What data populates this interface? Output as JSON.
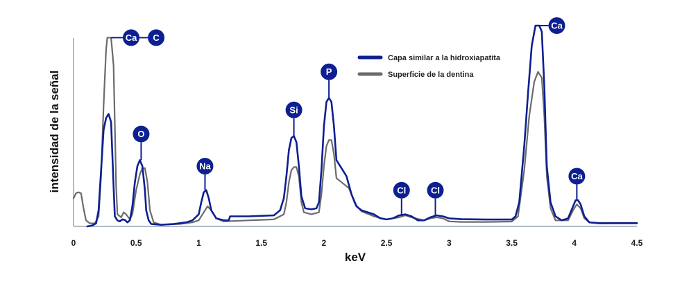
{
  "chart_data": {
    "type": "line",
    "title": "",
    "xlabel": "keV",
    "ylabel": "intensidad de la señal",
    "xlim": [
      0,
      4.5
    ],
    "ylim": [
      0,
      100
    ],
    "grid": false,
    "legend_position": "top-right",
    "xticks": [
      {
        "value": 0,
        "label": "0"
      },
      {
        "value": 0.5,
        "label": "0.5"
      },
      {
        "value": 1,
        "label": "1"
      },
      {
        "value": 1.5,
        "label": "1.5"
      },
      {
        "value": 2,
        "label": "2"
      },
      {
        "value": 2.5,
        "label": "2.5"
      },
      {
        "value": 3,
        "label": "3"
      },
      {
        "value": 3.5,
        "label": "3.5"
      },
      {
        "value": 4,
        "label": "4"
      },
      {
        "value": 4.5,
        "label": "4.5"
      }
    ],
    "series": [
      {
        "name": "Capa similar a la hidroxiapatita",
        "color": "#0d1f91",
        "points": [
          [
            0.11,
            0
          ],
          [
            0.15,
            0.5
          ],
          [
            0.18,
            1.5
          ],
          [
            0.2,
            8
          ],
          [
            0.22,
            28
          ],
          [
            0.24,
            48
          ],
          [
            0.26,
            54
          ],
          [
            0.28,
            56
          ],
          [
            0.3,
            52
          ],
          [
            0.32,
            20
          ],
          [
            0.33,
            5
          ],
          [
            0.35,
            3
          ],
          [
            0.37,
            2.5
          ],
          [
            0.39,
            3.5
          ],
          [
            0.41,
            3.2
          ],
          [
            0.43,
            2
          ],
          [
            0.45,
            3
          ],
          [
            0.47,
            10
          ],
          [
            0.49,
            22
          ],
          [
            0.51,
            30
          ],
          [
            0.53,
            33
          ],
          [
            0.55,
            30
          ],
          [
            0.57,
            18
          ],
          [
            0.58,
            8
          ],
          [
            0.6,
            3
          ],
          [
            0.62,
            1.2
          ],
          [
            0.7,
            0.8
          ],
          [
            0.8,
            1.2
          ],
          [
            0.9,
            2
          ],
          [
            0.95,
            3
          ],
          [
            1.0,
            6
          ],
          [
            1.02,
            12
          ],
          [
            1.04,
            17
          ],
          [
            1.06,
            18
          ],
          [
            1.08,
            14
          ],
          [
            1.1,
            8
          ],
          [
            1.14,
            4
          ],
          [
            1.2,
            3
          ],
          [
            1.24,
            3
          ],
          [
            1.25,
            5
          ],
          [
            1.4,
            5
          ],
          [
            1.6,
            5.5
          ],
          [
            1.65,
            8
          ],
          [
            1.68,
            14
          ],
          [
            1.7,
            25
          ],
          [
            1.72,
            38
          ],
          [
            1.74,
            44
          ],
          [
            1.76,
            45
          ],
          [
            1.78,
            42
          ],
          [
            1.8,
            30
          ],
          [
            1.82,
            15
          ],
          [
            1.85,
            9
          ],
          [
            1.9,
            8.5
          ],
          [
            1.94,
            9
          ],
          [
            1.96,
            12
          ],
          [
            1.98,
            28
          ],
          [
            2.0,
            50
          ],
          [
            2.02,
            62
          ],
          [
            2.04,
            64
          ],
          [
            2.06,
            62
          ],
          [
            2.08,
            50
          ],
          [
            2.1,
            33
          ],
          [
            2.14,
            29
          ],
          [
            2.18,
            25
          ],
          [
            2.22,
            16
          ],
          [
            2.26,
            10
          ],
          [
            2.3,
            8
          ],
          [
            2.4,
            6
          ],
          [
            2.45,
            4
          ],
          [
            2.5,
            3.5
          ],
          [
            2.55,
            4
          ],
          [
            2.6,
            5.5
          ],
          [
            2.65,
            6
          ],
          [
            2.7,
            5
          ],
          [
            2.75,
            3
          ],
          [
            2.8,
            3
          ],
          [
            2.85,
            4.5
          ],
          [
            2.9,
            5.5
          ],
          [
            2.95,
            5
          ],
          [
            3.0,
            4
          ],
          [
            3.1,
            3.6
          ],
          [
            3.3,
            3.4
          ],
          [
            3.5,
            3.4
          ],
          [
            3.53,
            5
          ],
          [
            3.56,
            12
          ],
          [
            3.6,
            40
          ],
          [
            3.63,
            66
          ],
          [
            3.66,
            90
          ],
          [
            3.69,
            100
          ],
          [
            3.72,
            100
          ],
          [
            3.74,
            97
          ],
          [
            3.76,
            70
          ],
          [
            3.78,
            30
          ],
          [
            3.81,
            12
          ],
          [
            3.85,
            5
          ],
          [
            3.9,
            3
          ],
          [
            3.95,
            4
          ],
          [
            3.99,
            10
          ],
          [
            4.01,
            13
          ],
          [
            4.03,
            13
          ],
          [
            4.05,
            11
          ],
          [
            4.08,
            5
          ],
          [
            4.12,
            2
          ],
          [
            4.2,
            1.5
          ],
          [
            4.4,
            1.6
          ],
          [
            4.5,
            1.6
          ]
        ]
      },
      {
        "name": "Superficie de la dentina",
        "color": "#6b6b6b",
        "points": [
          [
            0.0,
            14
          ],
          [
            0.02,
            16.5
          ],
          [
            0.04,
            17
          ],
          [
            0.06,
            16.5
          ],
          [
            0.08,
            9
          ],
          [
            0.1,
            3
          ],
          [
            0.13,
            1.5
          ],
          [
            0.17,
            1.5
          ],
          [
            0.2,
            5
          ],
          [
            0.22,
            25
          ],
          [
            0.24,
            60
          ],
          [
            0.26,
            88
          ],
          [
            0.27,
            94
          ],
          [
            0.3,
            94
          ],
          [
            0.32,
            80
          ],
          [
            0.34,
            20
          ],
          [
            0.35,
            6
          ],
          [
            0.38,
            4.5
          ],
          [
            0.4,
            7
          ],
          [
            0.42,
            6
          ],
          [
            0.45,
            3.5
          ],
          [
            0.47,
            6
          ],
          [
            0.5,
            18
          ],
          [
            0.53,
            26
          ],
          [
            0.55,
            29
          ],
          [
            0.57,
            29
          ],
          [
            0.59,
            22
          ],
          [
            0.61,
            8
          ],
          [
            0.64,
            2
          ],
          [
            0.7,
            0.8
          ],
          [
            0.85,
            1.2
          ],
          [
            0.95,
            2
          ],
          [
            1.0,
            3
          ],
          [
            1.04,
            7
          ],
          [
            1.07,
            10
          ],
          [
            1.1,
            8
          ],
          [
            1.14,
            4
          ],
          [
            1.2,
            2.5
          ],
          [
            1.4,
            3
          ],
          [
            1.6,
            3.5
          ],
          [
            1.68,
            6
          ],
          [
            1.7,
            12
          ],
          [
            1.72,
            22
          ],
          [
            1.74,
            28
          ],
          [
            1.76,
            29.5
          ],
          [
            1.78,
            29.5
          ],
          [
            1.8,
            25
          ],
          [
            1.82,
            12
          ],
          [
            1.84,
            7
          ],
          [
            1.9,
            6
          ],
          [
            1.96,
            7
          ],
          [
            1.98,
            16
          ],
          [
            2.0,
            30
          ],
          [
            2.02,
            40
          ],
          [
            2.04,
            43
          ],
          [
            2.06,
            43
          ],
          [
            2.08,
            36
          ],
          [
            2.1,
            24
          ],
          [
            2.14,
            22
          ],
          [
            2.2,
            19
          ],
          [
            2.25,
            11
          ],
          [
            2.3,
            7.5
          ],
          [
            2.4,
            5
          ],
          [
            2.5,
            3.5
          ],
          [
            2.6,
            4.5
          ],
          [
            2.65,
            5.5
          ],
          [
            2.7,
            4.5
          ],
          [
            2.8,
            3
          ],
          [
            2.85,
            4
          ],
          [
            2.9,
            4.5
          ],
          [
            2.95,
            4
          ],
          [
            3.0,
            2.5
          ],
          [
            3.1,
            2.2
          ],
          [
            3.3,
            2.2
          ],
          [
            3.5,
            2.4
          ],
          [
            3.55,
            5
          ],
          [
            3.6,
            28
          ],
          [
            3.64,
            55
          ],
          [
            3.68,
            72
          ],
          [
            3.71,
            77
          ],
          [
            3.74,
            74
          ],
          [
            3.76,
            55
          ],
          [
            3.78,
            25
          ],
          [
            3.81,
            9
          ],
          [
            3.85,
            3
          ],
          [
            3.95,
            3
          ],
          [
            3.99,
            8
          ],
          [
            4.02,
            11
          ],
          [
            4.05,
            9
          ],
          [
            4.08,
            4
          ],
          [
            4.12,
            2
          ],
          [
            4.2,
            1.8
          ],
          [
            4.5,
            1.8
          ]
        ]
      }
    ],
    "annotations": [
      {
        "label": "Ca",
        "x": 0.46,
        "marker_y": 94,
        "point_x": 0.3,
        "point_y": 94,
        "connector": "horizontal",
        "paired_with": "C"
      },
      {
        "label": "C",
        "x": 0.66,
        "marker_y": 94,
        "connector": "horizontal-link"
      },
      {
        "label": "O",
        "x": 0.54,
        "marker_y": 46,
        "point_x": 0.54,
        "point_y": 33,
        "connector": "vertical"
      },
      {
        "label": "Na",
        "x": 1.05,
        "marker_y": 30,
        "point_x": 1.05,
        "point_y": 18,
        "connector": "vertical"
      },
      {
        "label": "Si",
        "x": 1.76,
        "marker_y": 58,
        "point_x": 1.76,
        "point_y": 45,
        "connector": "vertical"
      },
      {
        "label": "P",
        "x": 2.04,
        "marker_y": 77,
        "point_x": 2.04,
        "point_y": 64,
        "connector": "vertical"
      },
      {
        "label": "Cl",
        "x": 2.62,
        "marker_y": 18,
        "point_x": 2.62,
        "point_y": 6,
        "connector": "vertical"
      },
      {
        "label": "Cl",
        "x": 2.89,
        "marker_y": 18,
        "point_x": 2.89,
        "point_y": 5.5,
        "connector": "vertical"
      },
      {
        "label": "Ca",
        "x": 3.86,
        "marker_y": 100,
        "point_x": 3.72,
        "point_y": 100,
        "connector": "horizontal"
      },
      {
        "label": "Ca",
        "x": 4.02,
        "marker_y": 25,
        "point_x": 4.02,
        "point_y": 13,
        "connector": "vertical"
      }
    ]
  },
  "legend": {
    "items": [
      {
        "label": "Capa similar a la hidroxiapatita",
        "color": "#0d1f91"
      },
      {
        "label": "Superficie de la dentina",
        "color": "#6b6b6b"
      }
    ]
  },
  "colors": {
    "marker_fill": "#0d1f91",
    "axis": "#9aa3b5",
    "text": "#111111"
  }
}
